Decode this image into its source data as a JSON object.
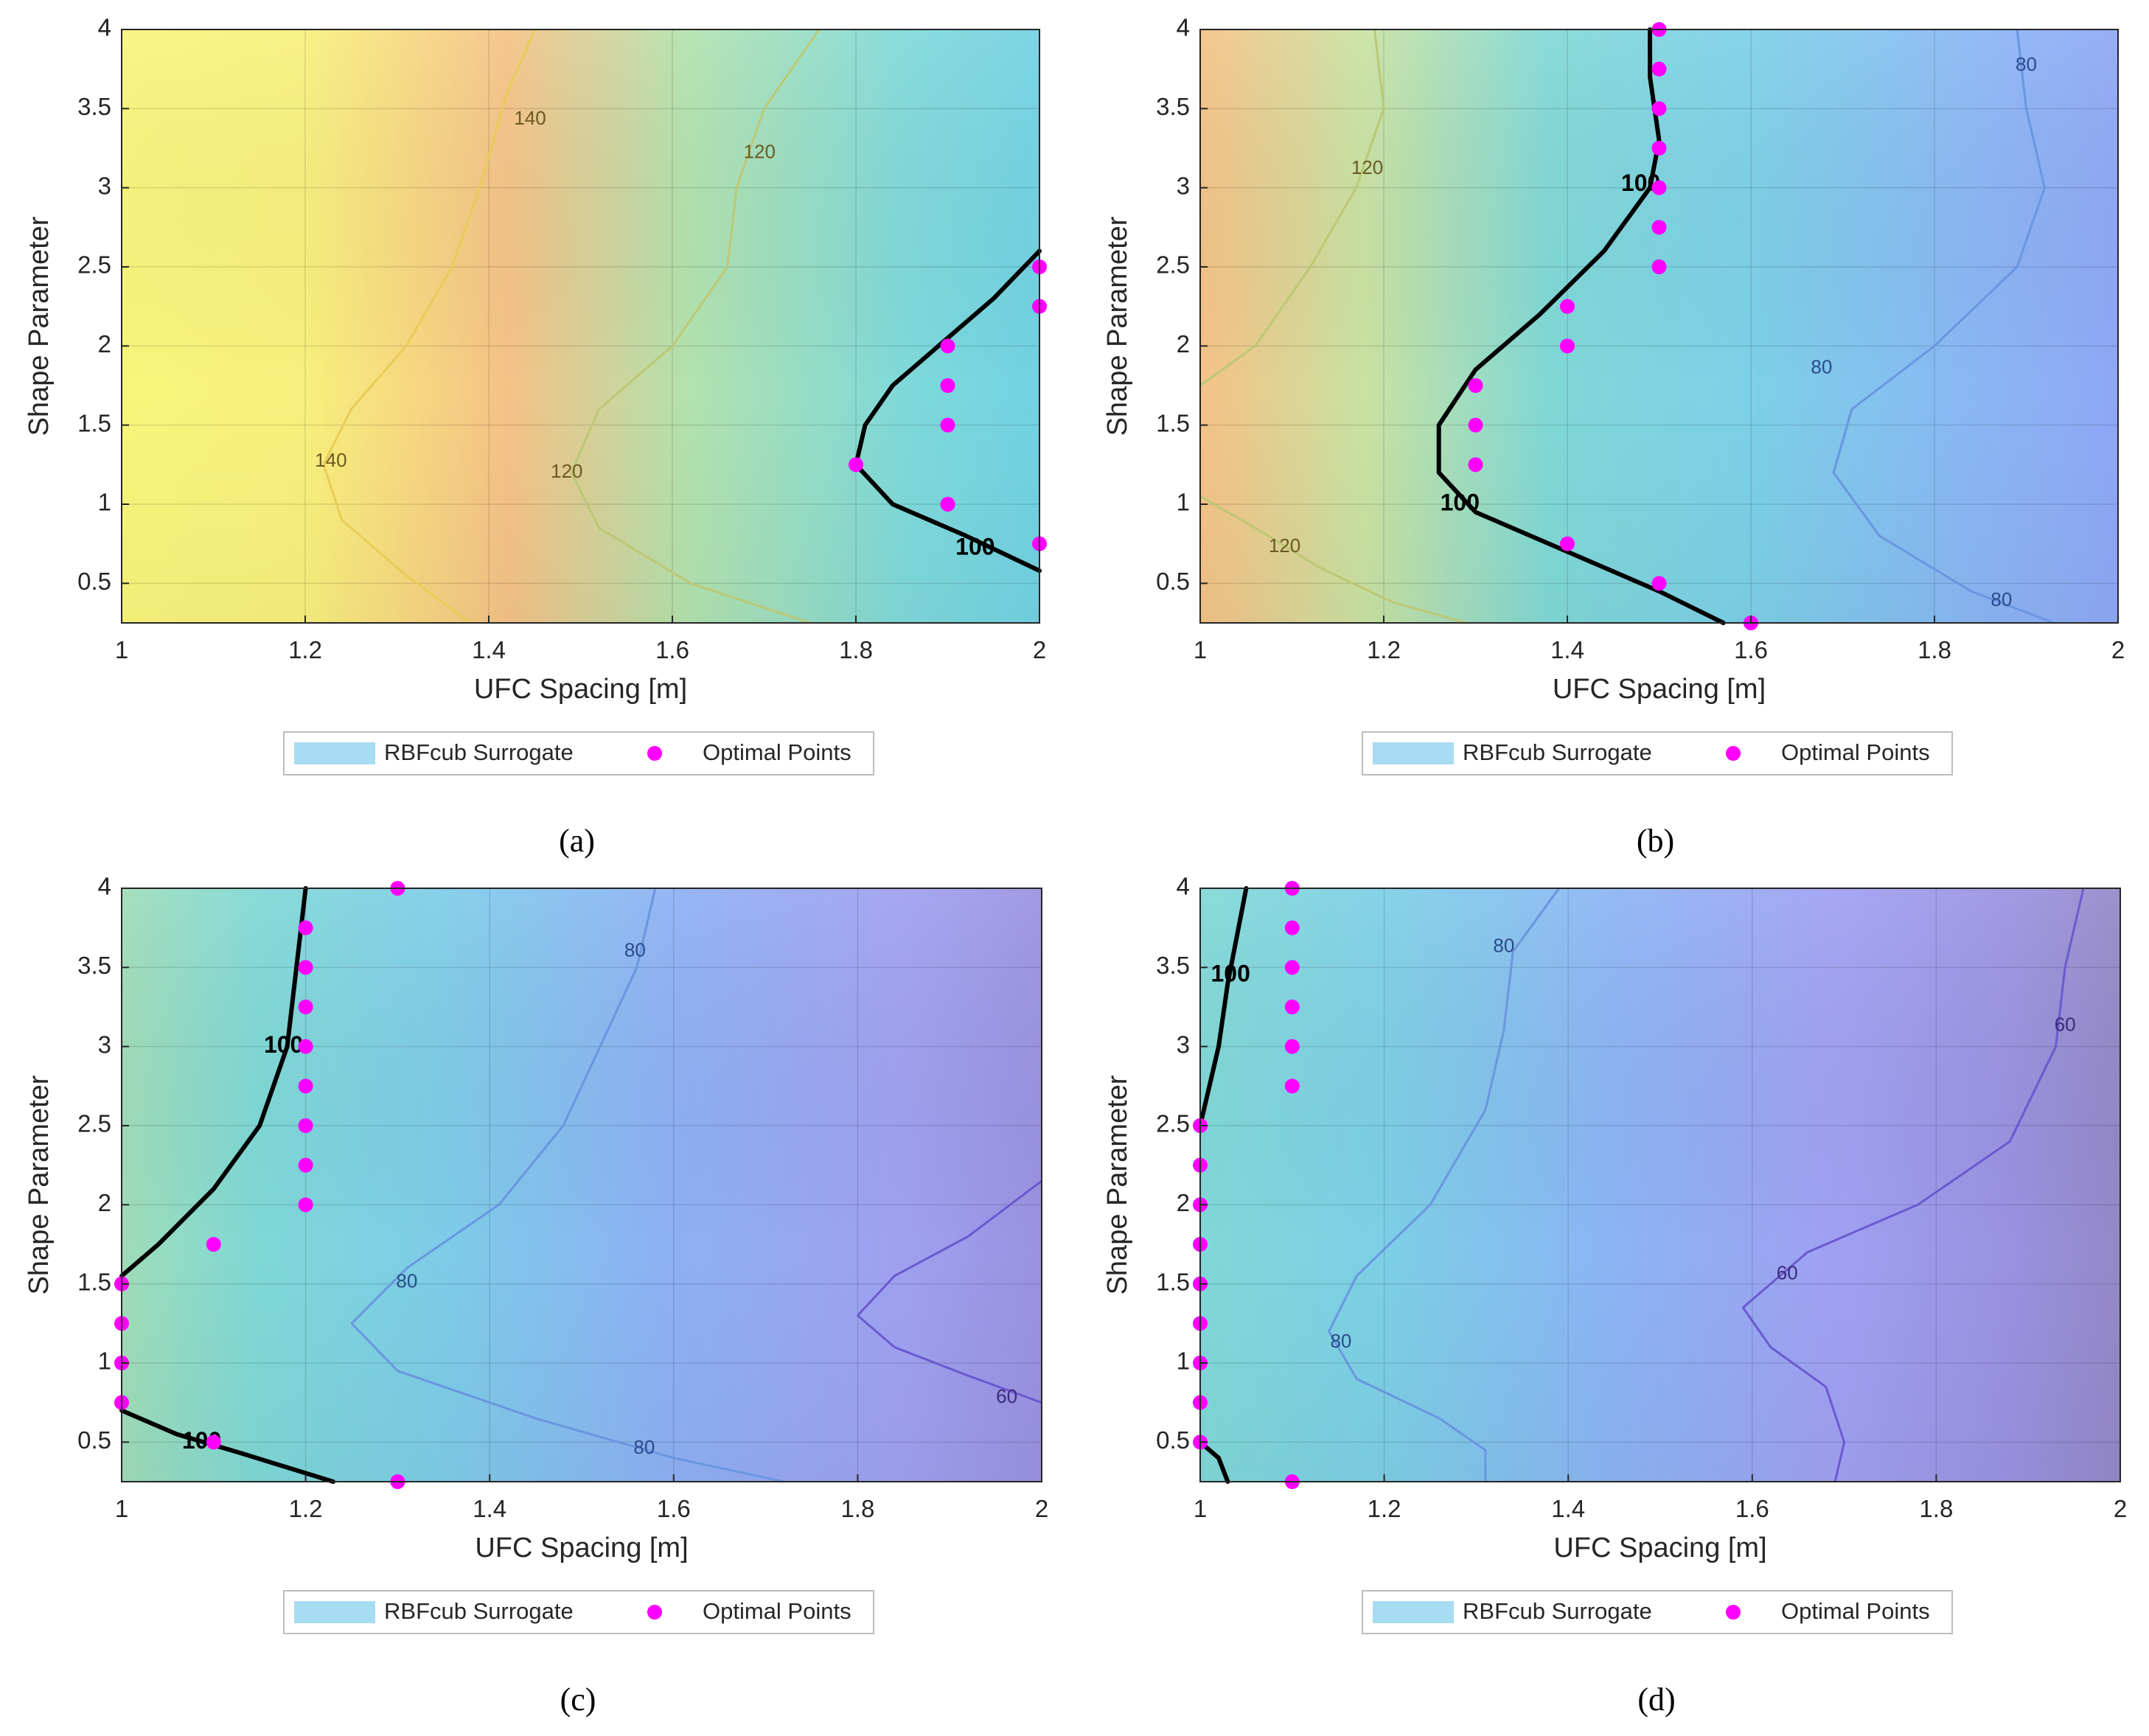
{
  "figure": {
    "legend": {
      "surrogate_label": "RBFcub Surrogate",
      "points_label": "Optimal Points"
    },
    "colors": {
      "points": "#ff00ff",
      "boundary": "#000000",
      "legend_patch": "#a8dcf2"
    }
  },
  "chart_data": [
    {
      "panel": "a",
      "label": "(a)",
      "type": "contour",
      "xlabel": "UFC Spacing [m]",
      "ylabel": "Shape Parameter",
      "xlim": [
        1,
        2
      ],
      "ylim": [
        0.25,
        4
      ],
      "xticks": [
        "1",
        "1.2",
        "1.4",
        "1.6",
        "1.8",
        "2"
      ],
      "yticks": [
        "0.5",
        "1",
        "1.5",
        "2",
        "2.5",
        "3",
        "3.5",
        "4"
      ],
      "grid": true,
      "legend_position": "bottom",
      "colormap_stops": [
        {
          "x": 1.0,
          "color": "#f8f57c"
        },
        {
          "x": 1.2,
          "color": "#f8f07c"
        },
        {
          "x": 1.42,
          "color": "#f5c286"
        },
        {
          "x": 1.62,
          "color": "#b2e2ae"
        },
        {
          "x": 1.85,
          "color": "#7fd9d9"
        },
        {
          "x": 2.0,
          "color": "#72d2e2"
        }
      ],
      "contours": [
        {
          "level": "140",
          "color": "#e8cc58",
          "points": [
            [
              1.45,
              4
            ],
            [
              1.42,
              3.6
            ],
            [
              1.39,
              3
            ],
            [
              1.36,
              2.5
            ],
            [
              1.31,
              2
            ],
            [
              1.25,
              1.6
            ],
            [
              1.22,
              1.25
            ],
            [
              1.24,
              0.9
            ],
            [
              1.31,
              0.55
            ],
            [
              1.38,
              0.25
            ]
          ]
        },
        {
          "level": "120",
          "color": "#bcc874",
          "points": [
            [
              1.76,
              4
            ],
            [
              1.7,
              3.5
            ],
            [
              1.67,
              3
            ],
            [
              1.66,
              2.5
            ],
            [
              1.6,
              2
            ],
            [
              1.52,
              1.6
            ],
            [
              1.49,
              1.2
            ],
            [
              1.52,
              0.85
            ],
            [
              1.62,
              0.5
            ],
            [
              1.75,
              0.25
            ]
          ]
        }
      ],
      "boundary": {
        "level": "100",
        "points": [
          [
            2,
            2.6
          ],
          [
            1.95,
            2.3
          ],
          [
            1.89,
            2
          ],
          [
            1.84,
            1.75
          ],
          [
            1.81,
            1.5
          ],
          [
            1.8,
            1.25
          ],
          [
            1.84,
            1.0
          ],
          [
            1.92,
            0.8
          ],
          [
            2,
            0.58
          ]
        ]
      },
      "contour_labels": [
        {
          "text": "140",
          "x": 1.445,
          "y": 3.43,
          "color": "#6a5a20"
        },
        {
          "text": "120",
          "x": 1.695,
          "y": 3.22,
          "color": "#6a5a20"
        },
        {
          "text": "140",
          "x": 1.228,
          "y": 1.27,
          "color": "#6a5a20"
        },
        {
          "text": "120",
          "x": 1.485,
          "y": 1.2,
          "color": "#6a5a20"
        }
      ],
      "boundary_labels": [
        {
          "text": "100",
          "x": 1.93,
          "y": 0.72
        }
      ],
      "optimal_points": [
        [
          2,
          2.5
        ],
        [
          2,
          2.25
        ],
        [
          1.9,
          2
        ],
        [
          1.9,
          1.75
        ],
        [
          1.9,
          1.5
        ],
        [
          1.8,
          1.25
        ],
        [
          1.9,
          1
        ],
        [
          2,
          0.75
        ]
      ]
    },
    {
      "panel": "b",
      "label": "(b)",
      "type": "contour",
      "xlabel": "UFC Spacing [m]",
      "ylabel": "Shape Parameter",
      "xlim": [
        1,
        2
      ],
      "ylim": [
        0.25,
        4
      ],
      "xticks": [
        "1",
        "1.2",
        "1.4",
        "1.6",
        "1.8",
        "2"
      ],
      "yticks": [
        "0.5",
        "1",
        "1.5",
        "2",
        "2.5",
        "3",
        "3.5",
        "4"
      ],
      "grid": true,
      "legend_position": "bottom",
      "colormap_stops": [
        {
          "x": 1.0,
          "color": "#f5c286"
        },
        {
          "x": 1.18,
          "color": "#c9e2a2"
        },
        {
          "x": 1.38,
          "color": "#80d8d6"
        },
        {
          "x": 1.6,
          "color": "#7cd0e8"
        },
        {
          "x": 1.85,
          "color": "#8ab6f4"
        },
        {
          "x": 2.0,
          "color": "#8fa7f6"
        }
      ],
      "contours": [
        {
          "level": "120",
          "color": "#bcc874",
          "points": [
            [
              1.19,
              4
            ],
            [
              1.2,
              3.5
            ],
            [
              1.17,
              3
            ],
            [
              1.12,
              2.5
            ],
            [
              1.06,
              2
            ],
            [
              1,
              1.75
            ]
          ]
        },
        {
          "level": "120",
          "color": "#bcc874",
          "points": [
            [
              1,
              1.05
            ],
            [
              1.06,
              0.85
            ],
            [
              1.13,
              0.6
            ],
            [
              1.21,
              0.38
            ],
            [
              1.29,
              0.25
            ]
          ]
        },
        {
          "level": "80",
          "color": "#6a96e0",
          "points": [
            [
              1.89,
              4
            ],
            [
              1.9,
              3.5
            ],
            [
              1.92,
              3
            ],
            [
              1.89,
              2.5
            ],
            [
              1.8,
              2
            ],
            [
              1.71,
              1.6
            ],
            [
              1.69,
              1.2
            ],
            [
              1.74,
              0.8
            ],
            [
              1.84,
              0.45
            ],
            [
              1.93,
              0.25
            ]
          ]
        }
      ],
      "boundary": {
        "level": "100",
        "points": [
          [
            1.49,
            4
          ],
          [
            1.49,
            3.7
          ],
          [
            1.5,
            3.3
          ],
          [
            1.49,
            3.0
          ],
          [
            1.44,
            2.6
          ],
          [
            1.37,
            2.2
          ],
          [
            1.3,
            1.85
          ],
          [
            1.26,
            1.5
          ],
          [
            1.26,
            1.2
          ],
          [
            1.3,
            0.95
          ],
          [
            1.4,
            0.7
          ],
          [
            1.5,
            0.45
          ],
          [
            1.57,
            0.25
          ]
        ]
      },
      "contour_labels": [
        {
          "text": "120",
          "x": 1.182,
          "y": 3.12,
          "color": "#6a5a20"
        },
        {
          "text": "120",
          "x": 1.092,
          "y": 0.73,
          "color": "#6a5a20"
        },
        {
          "text": "80",
          "x": 1.9,
          "y": 3.77,
          "color": "#2a4a8a"
        },
        {
          "text": "80",
          "x": 1.677,
          "y": 1.86,
          "color": "#2a4a8a"
        },
        {
          "text": "80",
          "x": 1.873,
          "y": 0.39,
          "color": "#2a4a8a"
        }
      ],
      "boundary_labels": [
        {
          "text": "100",
          "x": 1.48,
          "y": 3.02
        },
        {
          "text": "100",
          "x": 1.283,
          "y": 1.0
        }
      ],
      "optimal_points": [
        [
          1.5,
          4
        ],
        [
          1.5,
          3.75
        ],
        [
          1.5,
          3.5
        ],
        [
          1.5,
          3.25
        ],
        [
          1.5,
          3
        ],
        [
          1.5,
          2.75
        ],
        [
          1.5,
          2.5
        ],
        [
          1.4,
          2.25
        ],
        [
          1.4,
          2
        ],
        [
          1.3,
          1.75
        ],
        [
          1.3,
          1.5
        ],
        [
          1.3,
          1.25
        ],
        [
          1.4,
          0.75
        ],
        [
          1.5,
          0.5
        ],
        [
          1.6,
          0.25
        ]
      ]
    },
    {
      "panel": "c",
      "label": "(c)",
      "type": "contour",
      "xlabel": "UFC Spacing [m]",
      "ylabel": "Shape Parameter",
      "xlim": [
        1,
        2
      ],
      "ylim": [
        0.25,
        4
      ],
      "xticks": [
        "1",
        "1.2",
        "1.4",
        "1.6",
        "1.8",
        "2"
      ],
      "yticks": [
        "0.5",
        "1",
        "1.5",
        "2",
        "2.5",
        "3",
        "3.5",
        "4"
      ],
      "grid": true,
      "legend_position": "bottom",
      "colormap_stops": [
        {
          "x": 1.0,
          "color": "#9fdcb8"
        },
        {
          "x": 1.15,
          "color": "#7ed8d6"
        },
        {
          "x": 1.35,
          "color": "#7dcce8"
        },
        {
          "x": 1.6,
          "color": "#8db0f4"
        },
        {
          "x": 1.85,
          "color": "#9fa0f0"
        },
        {
          "x": 2.0,
          "color": "#9a92e0"
        }
      ],
      "contours": [
        {
          "level": "80",
          "color": "#6a96e0",
          "points": [
            [
              1.58,
              4
            ],
            [
              1.56,
              3.5
            ],
            [
              1.52,
              3
            ],
            [
              1.48,
              2.5
            ],
            [
              1.41,
              2
            ],
            [
              1.31,
              1.6
            ],
            [
              1.25,
              1.25
            ],
            [
              1.3,
              0.95
            ],
            [
              1.45,
              0.65
            ],
            [
              1.6,
              0.4
            ],
            [
              1.72,
              0.25
            ]
          ]
        },
        {
          "level": "60",
          "color": "#6a5ad0",
          "points": [
            [
              2,
              2.15
            ],
            [
              1.92,
              1.8
            ],
            [
              1.84,
              1.55
            ],
            [
              1.8,
              1.3
            ],
            [
              1.84,
              1.1
            ],
            [
              1.92,
              0.92
            ],
            [
              2,
              0.75
            ]
          ]
        }
      ],
      "boundary": {
        "level": "100",
        "points": [
          [
            1.2,
            4
          ],
          [
            1.19,
            3.5
          ],
          [
            1.18,
            3.0
          ],
          [
            1.15,
            2.5
          ],
          [
            1.1,
            2.1
          ],
          [
            1.04,
            1.75
          ],
          [
            1,
            1.55
          ]
        ]
      },
      "boundary2": {
        "level": "100",
        "points": [
          [
            1,
            0.7
          ],
          [
            1.06,
            0.55
          ],
          [
            1.13,
            0.43
          ],
          [
            1.23,
            0.25
          ]
        ]
      },
      "contour_labels": [
        {
          "text": "80",
          "x": 1.558,
          "y": 3.6,
          "color": "#2a4a8a"
        },
        {
          "text": "80",
          "x": 1.31,
          "y": 1.51,
          "color": "#2a4a8a"
        },
        {
          "text": "80",
          "x": 1.568,
          "y": 0.46,
          "color": "#2a4a8a"
        },
        {
          "text": "60",
          "x": 1.962,
          "y": 0.78,
          "color": "#3a2a7a"
        }
      ],
      "boundary_labels": [
        {
          "text": "100",
          "x": 1.176,
          "y": 3.0
        },
        {
          "text": "100",
          "x": 1.087,
          "y": 0.5
        }
      ],
      "optimal_points": [
        [
          1.3,
          4
        ],
        [
          1.2,
          3.75
        ],
        [
          1.2,
          3.5
        ],
        [
          1.2,
          3.25
        ],
        [
          1.2,
          3
        ],
        [
          1.2,
          2.75
        ],
        [
          1.2,
          2.5
        ],
        [
          1.2,
          2.25
        ],
        [
          1.2,
          2
        ],
        [
          1.1,
          1.75
        ],
        [
          1,
          1.5
        ],
        [
          1,
          1.25
        ],
        [
          1,
          1
        ],
        [
          1,
          0.75
        ],
        [
          1.1,
          0.5
        ],
        [
          1.3,
          0.25
        ]
      ]
    },
    {
      "panel": "d",
      "label": "(d)",
      "type": "contour",
      "xlabel": "UFC Spacing [m]",
      "ylabel": "Shape Parameter",
      "xlim": [
        1,
        2
      ],
      "ylim": [
        0.25,
        4
      ],
      "xticks": [
        "1",
        "1.2",
        "1.4",
        "1.6",
        "1.8",
        "2"
      ],
      "yticks": [
        "0.5",
        "1",
        "1.5",
        "2",
        "2.5",
        "3",
        "3.5",
        "4"
      ],
      "grid": true,
      "legend_position": "bottom",
      "colormap_stops": [
        {
          "x": 1.0,
          "color": "#80d8d6"
        },
        {
          "x": 1.2,
          "color": "#7ccfe6"
        },
        {
          "x": 1.45,
          "color": "#8bb4f4"
        },
        {
          "x": 1.7,
          "color": "#a09ff2"
        },
        {
          "x": 1.88,
          "color": "#9a92e0"
        },
        {
          "x": 2.0,
          "color": "#9488c8"
        }
      ],
      "contours": [
        {
          "level": "80",
          "color": "#6a96e0",
          "points": [
            [
              1.39,
              4
            ],
            [
              1.34,
              3.6
            ],
            [
              1.33,
              3.1
            ],
            [
              1.31,
              2.6
            ],
            [
              1.25,
              2.0
            ],
            [
              1.17,
              1.55
            ],
            [
              1.14,
              1.2
            ],
            [
              1.17,
              0.9
            ],
            [
              1.26,
              0.65
            ],
            [
              1.31,
              0.45
            ],
            [
              1.31,
              0.25
            ]
          ]
        },
        {
          "level": "60",
          "color": "#6a5ad0",
          "points": [
            [
              1.96,
              4
            ],
            [
              1.94,
              3.5
            ],
            [
              1.93,
              3
            ],
            [
              1.88,
              2.4
            ],
            [
              1.78,
              2.0
            ],
            [
              1.66,
              1.7
            ],
            [
              1.59,
              1.35
            ],
            [
              1.62,
              1.1
            ],
            [
              1.68,
              0.85
            ],
            [
              1.7,
              0.5
            ],
            [
              1.69,
              0.25
            ]
          ]
        }
      ],
      "boundary": {
        "level": "100",
        "points": [
          [
            1.05,
            4
          ],
          [
            1.04,
            3.7
          ],
          [
            1.03,
            3.4
          ],
          [
            1.02,
            3.0
          ],
          [
            1.0,
            2.5
          ]
        ]
      },
      "boundary2": {
        "level": "100",
        "points": [
          [
            1,
            0.5
          ],
          [
            1.02,
            0.4
          ],
          [
            1.03,
            0.25
          ]
        ]
      },
      "contour_labels": [
        {
          "text": "80",
          "x": 1.33,
          "y": 3.63,
          "color": "#2a4a8a"
        },
        {
          "text": "80",
          "x": 1.153,
          "y": 1.13,
          "color": "#2a4a8a"
        },
        {
          "text": "60",
          "x": 1.94,
          "y": 3.13,
          "color": "#3a2a7a"
        },
        {
          "text": "60",
          "x": 1.638,
          "y": 1.56,
          "color": "#3a2a7a"
        }
      ],
      "boundary_labels": [
        {
          "text": "100",
          "x": 1.033,
          "y": 3.45
        }
      ],
      "optimal_points": [
        [
          1.1,
          4
        ],
        [
          1.1,
          3.75
        ],
        [
          1.1,
          3.5
        ],
        [
          1.1,
          3.25
        ],
        [
          1.1,
          3
        ],
        [
          1.1,
          2.75
        ],
        [
          1,
          2.5
        ],
        [
          1,
          2.25
        ],
        [
          1,
          2
        ],
        [
          1,
          1.75
        ],
        [
          1,
          1.5
        ],
        [
          1,
          1.25
        ],
        [
          1,
          1
        ],
        [
          1,
          0.75
        ],
        [
          1,
          0.5
        ],
        [
          1.1,
          0.25
        ]
      ]
    }
  ]
}
